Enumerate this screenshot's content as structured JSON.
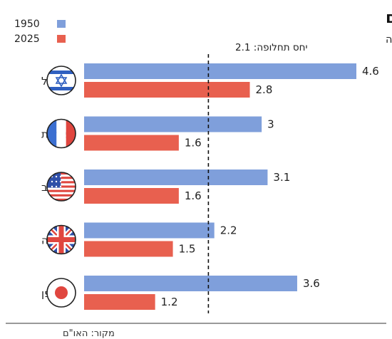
{
  "chart_data": {
    "type": "bar",
    "orientation": "horizontal",
    "title": "ירידה דרמטית בשיעורי הפריון בעולם",
    "subtitle": "ממוצע ילודה לאישה",
    "categories": [
      "ישראל",
      "צרפת",
      "ארה\"ב",
      "בריטניה",
      "יפן"
    ],
    "series": [
      {
        "name": "1950",
        "color": "#7f9fdb",
        "values": [
          4.6,
          3,
          3.1,
          2.2,
          3.6
        ]
      },
      {
        "name": "2025",
        "color": "#e8604f",
        "values": [
          2.8,
          1.6,
          1.6,
          1.5,
          1.2
        ]
      }
    ],
    "value_labels": [
      [
        "4.6",
        "3",
        "3.1",
        "2.2",
        "3.6"
      ],
      [
        "2.8",
        "1.6",
        "1.6",
        "1.5",
        "1.2"
      ]
    ],
    "reference_line": {
      "value": 2.1,
      "label": "יחס תחלופה: 2.1"
    },
    "xlim": [
      0,
      4.6
    ],
    "legend_position": "top-left",
    "flag_icons": [
      "israel-flag-icon",
      "france-flag-icon",
      "usa-flag-icon",
      "uk-flag-icon",
      "japan-flag-icon"
    ]
  },
  "source": "מקור: האו\"ם"
}
